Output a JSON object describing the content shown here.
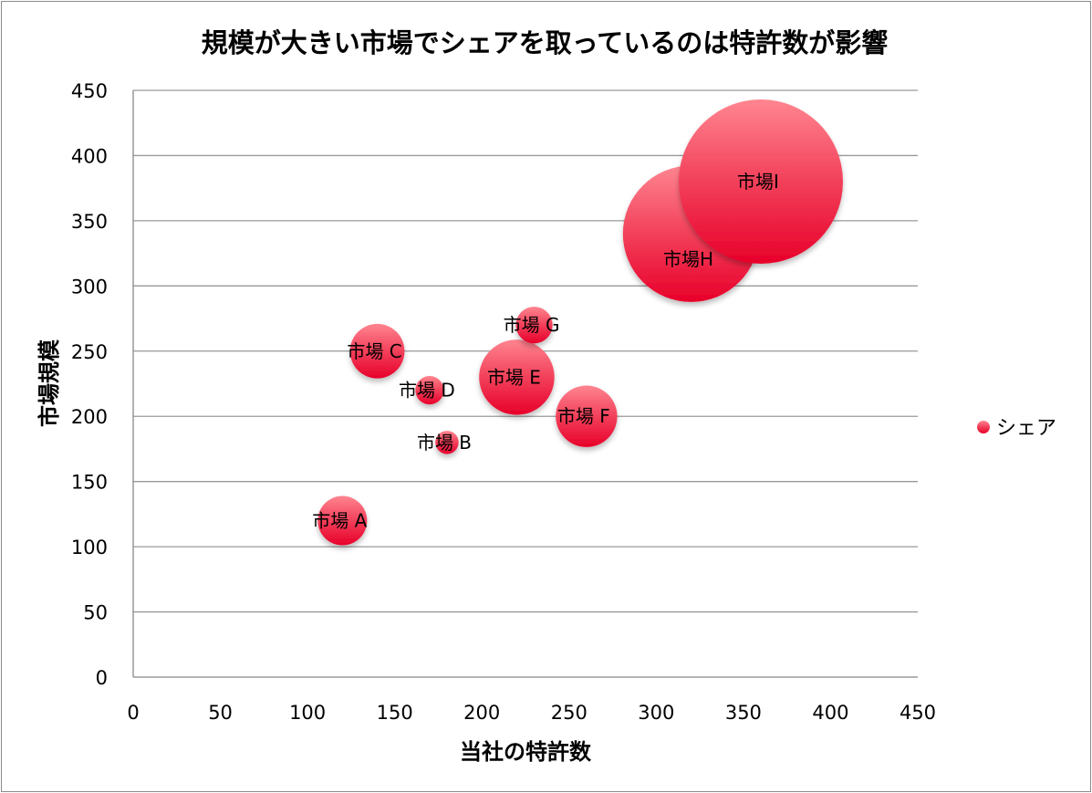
{
  "chart_data": {
    "type": "bubble",
    "title": "規模が大きい市場でシェアを取っているのは特許数が影響",
    "xlabel": "当社の特許数",
    "ylabel": "市場規模",
    "xlim": [
      0,
      450
    ],
    "ylim": [
      0,
      450
    ],
    "xticks": [
      0,
      50,
      100,
      150,
      200,
      250,
      300,
      350,
      400,
      450
    ],
    "yticks": [
      0,
      50,
      100,
      150,
      200,
      250,
      300,
      350,
      400,
      450
    ],
    "grid": "horizontal",
    "legend_placement": "right",
    "series": [
      {
        "name": "シェア",
        "color": "#e8173c",
        "points": [
          {
            "label": "市場 A",
            "x": 120,
            "y": 120,
            "size": 9
          },
          {
            "label": "市場 B",
            "x": 180,
            "y": 180,
            "size": 2
          },
          {
            "label": "市場 C",
            "x": 140,
            "y": 250,
            "size": 11
          },
          {
            "label": "市場 D",
            "x": 170,
            "y": 220,
            "size": 3
          },
          {
            "label": "市場 E",
            "x": 220,
            "y": 230,
            "size": 21
          },
          {
            "label": "市場 F",
            "x": 260,
            "y": 200,
            "size": 14
          },
          {
            "label": "市場 G",
            "x": 230,
            "y": 270,
            "size": 5
          },
          {
            "label": "市場H",
            "x": 320,
            "y": 340,
            "size": 69
          },
          {
            "label": "市場I",
            "x": 360,
            "y": 380,
            "size": 100
          }
        ]
      }
    ]
  }
}
